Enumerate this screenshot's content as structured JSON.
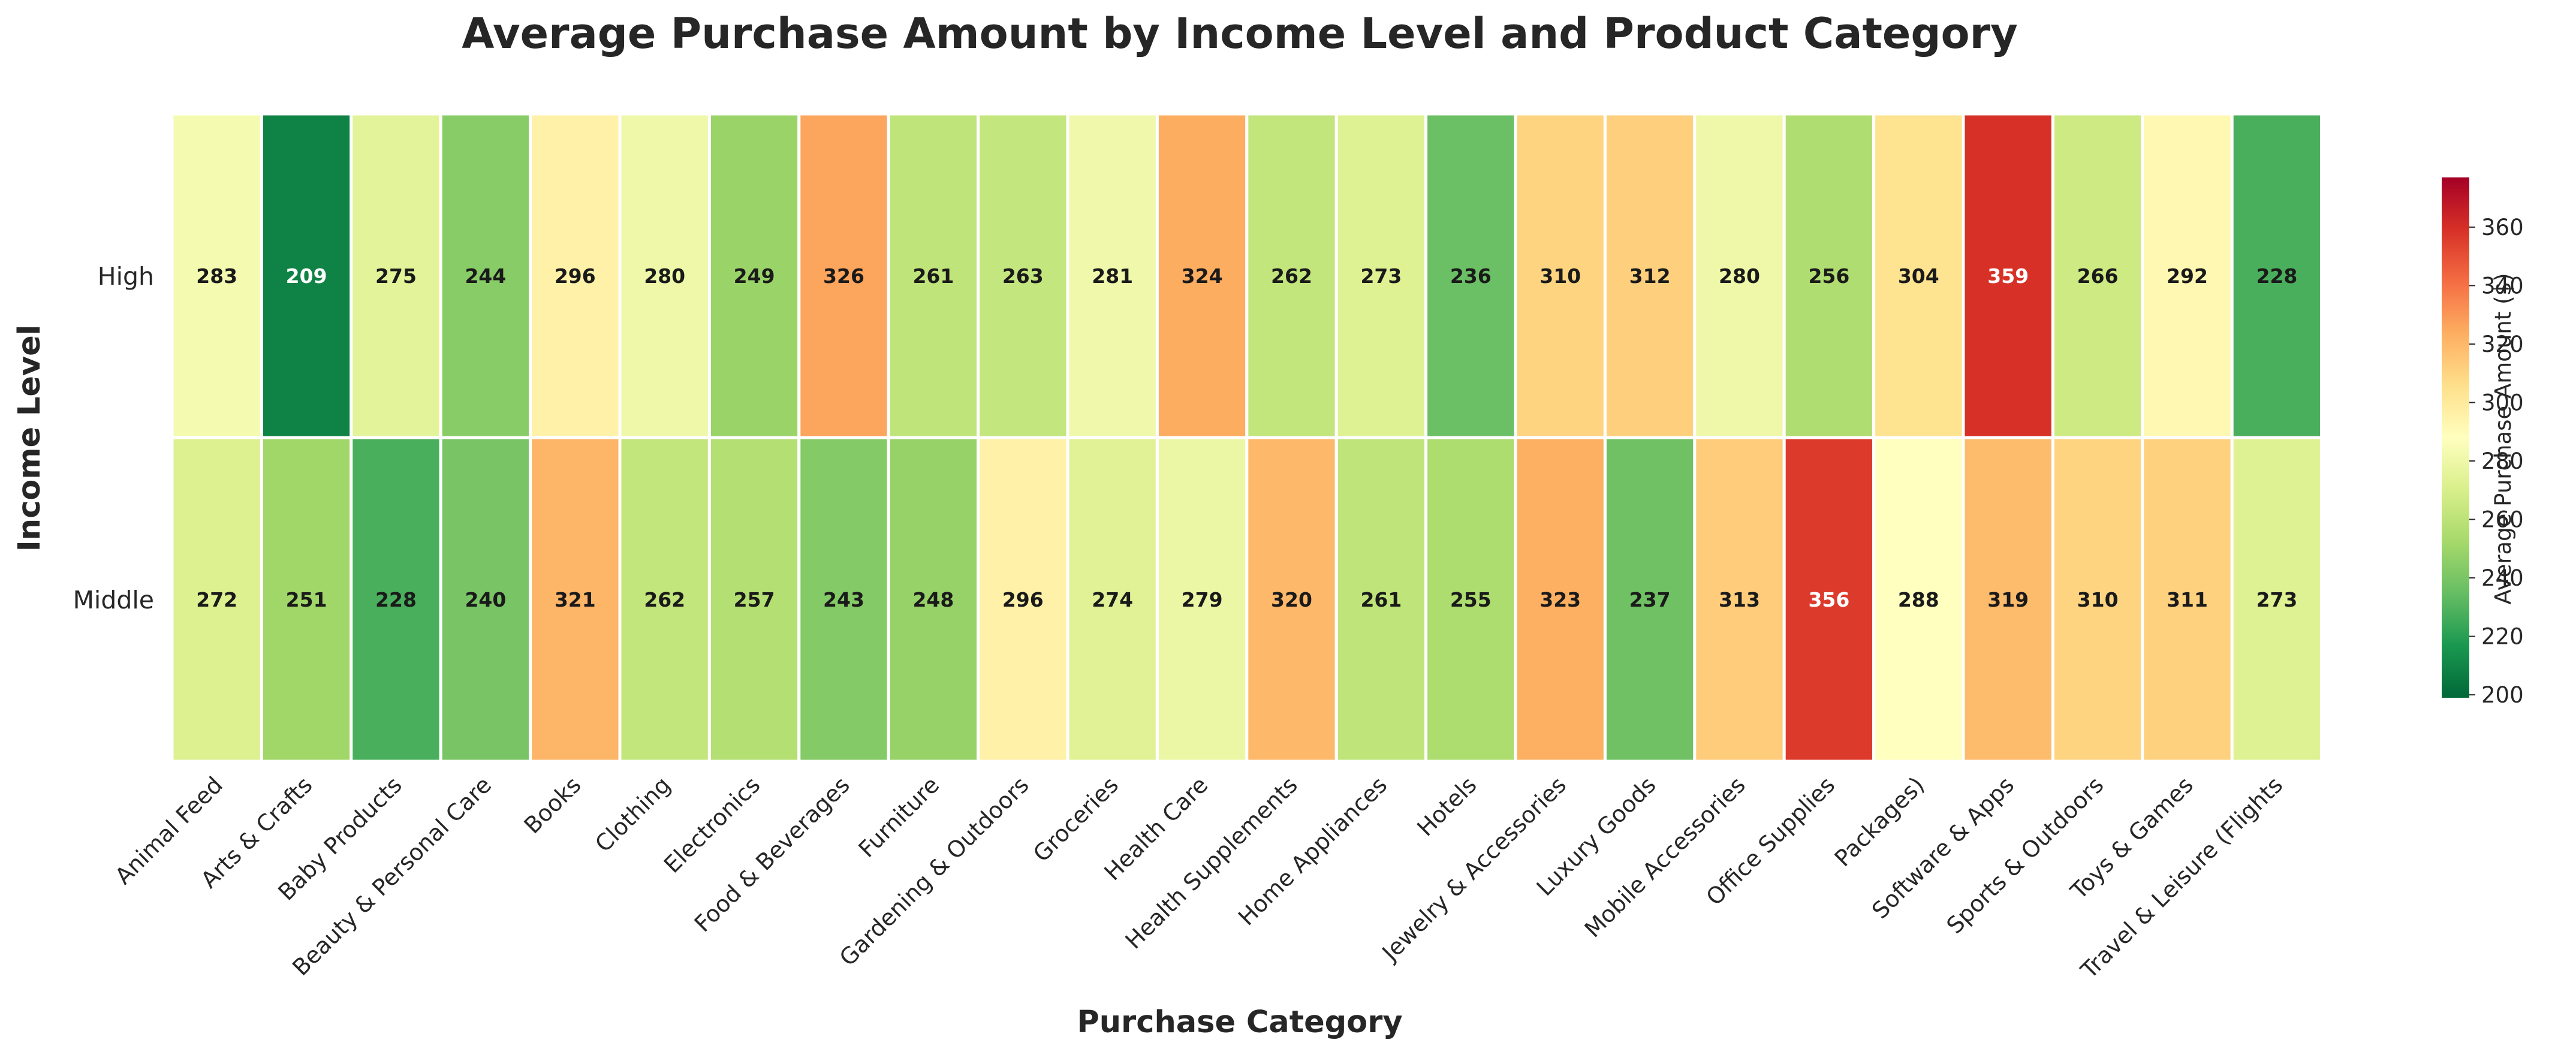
{
  "chart_data": {
    "type": "heatmap",
    "title": "Average Purchase Amount by Income Level and Product Category",
    "xlabel": "Purchase Category",
    "ylabel": "Income Level",
    "x_categories": [
      "Animal Feed",
      "Arts & Crafts",
      "Baby Products",
      "Beauty & Personal Care",
      "Books",
      "Clothing",
      "Electronics",
      "Food & Beverages",
      "Furniture",
      "Gardening & Outdoors",
      "Groceries",
      "Health Care",
      "Health Supplements",
      "Home Appliances",
      "Hotels",
      "Jewelry & Accessories",
      "Luxury Goods",
      "Mobile Accessories",
      "Office Supplies",
      "Packages)",
      "Software & Apps",
      "Sports & Outdoors",
      "Toys & Games",
      "Travel & Leisure (Flights"
    ],
    "y_categories": [
      "High",
      "Middle"
    ],
    "values": [
      [
        283,
        209,
        275,
        244,
        296,
        280,
        249,
        326,
        261,
        263,
        281,
        324,
        262,
        273,
        236,
        310,
        312,
        280,
        256,
        304,
        359,
        266,
        292,
        228
      ],
      [
        272,
        251,
        228,
        240,
        321,
        262,
        257,
        243,
        248,
        296,
        274,
        279,
        320,
        261,
        255,
        323,
        237,
        313,
        356,
        288,
        319,
        310,
        311,
        273
      ]
    ],
    "colorbar": {
      "label": "Average Purchase Amount ($)",
      "range": [
        199,
        377
      ],
      "ticks": [
        200,
        220,
        240,
        260,
        280,
        300,
        320,
        340,
        360
      ],
      "colormap": "RdYlGn_r"
    },
    "grid": false
  },
  "colors": {
    "text_dark": "#262626",
    "cell_text_dark": "#1a1a1a",
    "cell_text_light": "#ffffff",
    "cell_border": "#ffffff"
  }
}
